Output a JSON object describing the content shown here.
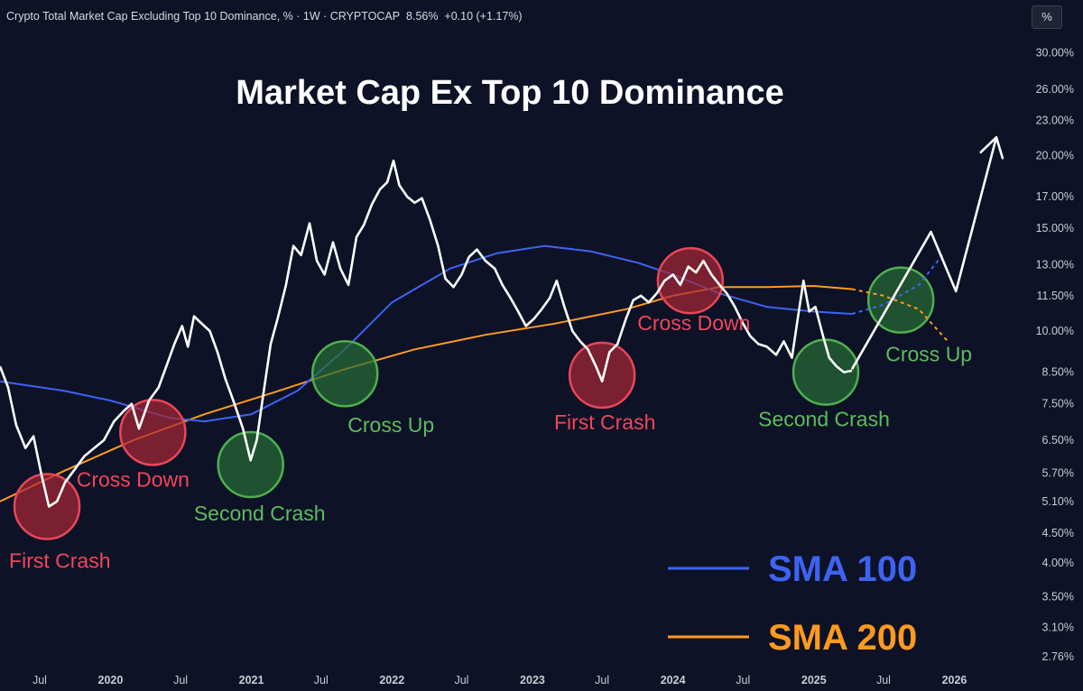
{
  "header": {
    "symbol_title": "Crypto Total Market Cap Excluding Top 10 Dominance, % · 1W · CRYPTOCAP",
    "last_value": "8.56%",
    "change": "+0.10 (+1.17%)",
    "unit_button": "%"
  },
  "chart_data": {
    "type": "line",
    "title": "Market Cap Ex Top 10 Dominance",
    "y_scale": "log",
    "ylim_percent": [
      2.6,
      31.5
    ],
    "xlim": [
      "2019-03-20",
      "2026-06-20"
    ],
    "y_tick_labels": [
      "30.00%",
      "26.00%",
      "23.00%",
      "20.00%",
      "17.00%",
      "15.00%",
      "13.00%",
      "11.50%",
      "10.00%",
      "8.50%",
      "7.50%",
      "6.50%",
      "5.70%",
      "5.10%",
      "4.50%",
      "4.00%",
      "3.50%",
      "3.10%",
      "2.76%"
    ],
    "y_ticks": [
      30.0,
      26.0,
      23.0,
      20.0,
      17.0,
      15.0,
      13.0,
      11.5,
      10.0,
      8.5,
      7.5,
      6.5,
      5.7,
      5.1,
      4.5,
      4.0,
      3.5,
      3.1,
      2.76
    ],
    "x_ticks": [
      {
        "label": "Jul",
        "date": "2019-07-01"
      },
      {
        "label": "2020",
        "date": "2020-01-01"
      },
      {
        "label": "Jul",
        "date": "2020-07-01"
      },
      {
        "label": "2021",
        "date": "2021-01-01"
      },
      {
        "label": "Jul",
        "date": "2021-07-01"
      },
      {
        "label": "2022",
        "date": "2022-01-01"
      },
      {
        "label": "Jul",
        "date": "2022-07-01"
      },
      {
        "label": "2023",
        "date": "2023-01-01"
      },
      {
        "label": "Jul",
        "date": "2023-07-01"
      },
      {
        "label": "2024",
        "date": "2024-01-01"
      },
      {
        "label": "Jul",
        "date": "2024-07-01"
      },
      {
        "label": "2025",
        "date": "2025-01-01"
      },
      {
        "label": "Jul",
        "date": "2025-07-01"
      },
      {
        "label": "2026",
        "date": "2026-01-01"
      }
    ],
    "series": [
      {
        "key": "price",
        "color": "#ffffff",
        "points": [
          [
            "2019-03-20",
            8.7
          ],
          [
            "2019-04-10",
            8.0
          ],
          [
            "2019-05-01",
            6.9
          ],
          [
            "2019-05-25",
            6.3
          ],
          [
            "2019-06-15",
            6.6
          ],
          [
            "2019-07-05",
            5.7
          ],
          [
            "2019-07-25",
            5.0
          ],
          [
            "2019-08-15",
            5.1
          ],
          [
            "2019-09-05",
            5.5
          ],
          [
            "2019-10-01",
            5.8
          ],
          [
            "2019-10-25",
            6.1
          ],
          [
            "2019-11-20",
            6.3
          ],
          [
            "2019-12-15",
            6.5
          ],
          [
            "2020-01-10",
            7.0
          ],
          [
            "2020-02-05",
            7.3
          ],
          [
            "2020-02-25",
            7.5
          ],
          [
            "2020-03-15",
            6.8
          ],
          [
            "2020-04-10",
            7.6
          ],
          [
            "2020-05-05",
            8.0
          ],
          [
            "2020-05-25",
            8.7
          ],
          [
            "2020-06-15",
            9.5
          ],
          [
            "2020-07-05",
            10.2
          ],
          [
            "2020-07-20",
            9.4
          ],
          [
            "2020-08-05",
            10.6
          ],
          [
            "2020-08-25",
            10.3
          ],
          [
            "2020-09-15",
            10.0
          ],
          [
            "2020-10-05",
            9.2
          ],
          [
            "2020-10-25",
            8.3
          ],
          [
            "2020-11-15",
            7.6
          ],
          [
            "2020-12-10",
            6.8
          ],
          [
            "2020-12-30",
            6.0
          ],
          [
            "2021-01-15",
            6.5
          ],
          [
            "2021-02-01",
            7.8
          ],
          [
            "2021-02-20",
            9.5
          ],
          [
            "2021-03-10",
            10.5
          ],
          [
            "2021-04-01",
            12.0
          ],
          [
            "2021-04-20",
            14.0
          ],
          [
            "2021-05-10",
            13.5
          ],
          [
            "2021-06-01",
            15.3
          ],
          [
            "2021-06-20",
            13.2
          ],
          [
            "2021-07-10",
            12.5
          ],
          [
            "2021-08-01",
            14.2
          ],
          [
            "2021-08-20",
            12.8
          ],
          [
            "2021-09-10",
            12.0
          ],
          [
            "2021-10-01",
            14.5
          ],
          [
            "2021-10-20",
            15.2
          ],
          [
            "2021-11-10",
            16.5
          ],
          [
            "2021-12-01",
            17.5
          ],
          [
            "2021-12-20",
            18.0
          ],
          [
            "2022-01-05",
            19.6
          ],
          [
            "2022-01-20",
            17.8
          ],
          [
            "2022-02-10",
            17.0
          ],
          [
            "2022-03-01",
            16.6
          ],
          [
            "2022-03-20",
            16.9
          ],
          [
            "2022-04-10",
            15.5
          ],
          [
            "2022-05-01",
            14.0
          ],
          [
            "2022-05-20",
            12.3
          ],
          [
            "2022-06-10",
            11.9
          ],
          [
            "2022-07-01",
            12.5
          ],
          [
            "2022-07-20",
            13.4
          ],
          [
            "2022-08-10",
            13.8
          ],
          [
            "2022-09-01",
            13.2
          ],
          [
            "2022-09-25",
            12.8
          ],
          [
            "2022-10-15",
            12.0
          ],
          [
            "2022-11-05",
            11.4
          ],
          [
            "2022-11-25",
            10.8
          ],
          [
            "2022-12-15",
            10.2
          ],
          [
            "2023-01-05",
            10.5
          ],
          [
            "2023-01-25",
            10.9
          ],
          [
            "2023-02-15",
            11.4
          ],
          [
            "2023-03-05",
            12.2
          ],
          [
            "2023-03-25",
            11.0
          ],
          [
            "2023-04-15",
            10.0
          ],
          [
            "2023-05-05",
            9.6
          ],
          [
            "2023-05-25",
            9.3
          ],
          [
            "2023-06-15",
            8.7
          ],
          [
            "2023-07-01",
            8.2
          ],
          [
            "2023-07-20",
            9.2
          ],
          [
            "2023-08-10",
            9.5
          ],
          [
            "2023-09-01",
            10.5
          ],
          [
            "2023-09-20",
            11.3
          ],
          [
            "2023-10-10",
            11.5
          ],
          [
            "2023-10-30",
            11.2
          ],
          [
            "2023-11-20",
            11.6
          ],
          [
            "2023-12-10",
            12.2
          ],
          [
            "2024-01-01",
            12.5
          ],
          [
            "2024-01-20",
            12.0
          ],
          [
            "2024-02-10",
            12.9
          ],
          [
            "2024-03-01",
            12.6
          ],
          [
            "2024-03-20",
            13.2
          ],
          [
            "2024-04-10",
            12.5
          ],
          [
            "2024-05-01",
            12.0
          ],
          [
            "2024-05-20",
            11.6
          ],
          [
            "2024-06-10",
            11.0
          ],
          [
            "2024-07-01",
            10.3
          ],
          [
            "2024-07-20",
            9.8
          ],
          [
            "2024-08-10",
            9.5
          ],
          [
            "2024-09-01",
            9.4
          ],
          [
            "2024-09-25",
            9.1
          ],
          [
            "2024-10-15",
            9.6
          ],
          [
            "2024-11-05",
            9.0
          ],
          [
            "2024-11-20",
            10.5
          ],
          [
            "2024-12-05",
            12.2
          ],
          [
            "2024-12-20",
            10.8
          ],
          [
            "2025-01-05",
            11.0
          ],
          [
            "2025-01-25",
            9.8
          ],
          [
            "2025-02-10",
            9.0
          ],
          [
            "2025-03-01",
            8.7
          ],
          [
            "2025-03-20",
            8.5
          ],
          [
            "2025-04-10",
            8.55
          ]
        ]
      },
      {
        "key": "sma100",
        "name": "SMA 100",
        "color": "#3d63f2",
        "points": [
          [
            "2019-03-20",
            8.2
          ],
          [
            "2019-09-01",
            7.9
          ],
          [
            "2020-01-01",
            7.6
          ],
          [
            "2020-06-01",
            7.1
          ],
          [
            "2020-09-01",
            7.0
          ],
          [
            "2021-01-01",
            7.2
          ],
          [
            "2021-05-01",
            7.9
          ],
          [
            "2021-09-01",
            9.3
          ],
          [
            "2022-01-01",
            11.2
          ],
          [
            "2022-06-01",
            12.8
          ],
          [
            "2022-10-01",
            13.6
          ],
          [
            "2023-02-01",
            14.0
          ],
          [
            "2023-06-01",
            13.7
          ],
          [
            "2023-10-01",
            13.1
          ],
          [
            "2024-01-01",
            12.5
          ],
          [
            "2024-05-01",
            11.6
          ],
          [
            "2024-09-01",
            11.0
          ],
          [
            "2025-01-01",
            10.8
          ],
          [
            "2025-04-10",
            10.7
          ]
        ]
      },
      {
        "key": "sma200",
        "name": "SMA 200",
        "color": "#ff9a1f",
        "points": [
          [
            "2019-03-20",
            5.1
          ],
          [
            "2019-09-01",
            5.75
          ],
          [
            "2020-03-01",
            6.5
          ],
          [
            "2020-09-01",
            7.2
          ],
          [
            "2021-03-01",
            7.85
          ],
          [
            "2021-09-01",
            8.6
          ],
          [
            "2022-03-01",
            9.3
          ],
          [
            "2022-09-01",
            9.85
          ],
          [
            "2023-03-01",
            10.3
          ],
          [
            "2023-09-01",
            10.9
          ],
          [
            "2024-01-01",
            11.5
          ],
          [
            "2024-05-01",
            11.9
          ],
          [
            "2024-09-01",
            11.9
          ],
          [
            "2025-01-01",
            11.95
          ],
          [
            "2025-04-10",
            11.8
          ]
        ]
      }
    ],
    "projections": [
      {
        "key": "sma100_proj",
        "color": "#3d63f2",
        "dashed": true,
        "points": [
          [
            "2025-04-10",
            10.7
          ],
          [
            "2025-07-01",
            11.1
          ],
          [
            "2025-10-01",
            12.0
          ],
          [
            "2025-12-01",
            13.5
          ]
        ]
      },
      {
        "key": "sma200_proj",
        "color": "#ff9a1f",
        "dashed": true,
        "points": [
          [
            "2025-04-10",
            11.8
          ],
          [
            "2025-07-01",
            11.5
          ],
          [
            "2025-10-01",
            10.9
          ],
          [
            "2025-12-15",
            9.6
          ]
        ]
      },
      {
        "key": "price_proj",
        "color": "#ffffff",
        "dashed": false,
        "arrow": true,
        "points": [
          [
            "2025-04-10",
            8.6
          ],
          [
            "2025-11-01",
            14.8
          ],
          [
            "2026-01-05",
            11.7
          ],
          [
            "2026-04-20",
            21.5
          ]
        ]
      }
    ],
    "annotations": [
      {
        "label": "First Crash",
        "color": "red",
        "date": "2019-07-20",
        "value": 5.0,
        "text_anchor": "start",
        "text_dx": -42,
        "text_dy": 68
      },
      {
        "label": "Cross Down",
        "color": "red",
        "date": "2020-04-20",
        "value": 6.7,
        "text_anchor": "middle",
        "text_dx": -22,
        "text_dy": 60
      },
      {
        "label": "Second Crash",
        "color": "green",
        "date": "2020-12-30",
        "value": 5.9,
        "text_anchor": "middle",
        "text_dx": 10,
        "text_dy": 62
      },
      {
        "label": "Cross Up",
        "color": "green",
        "date": "2021-09-01",
        "value": 8.45,
        "text_anchor": "middle",
        "text_dx": 51,
        "text_dy": 65
      },
      {
        "label": "First Crash",
        "color": "red",
        "date": "2023-07-01",
        "value": 8.4,
        "text_anchor": "middle",
        "text_dx": 3,
        "text_dy": 60
      },
      {
        "label": "Cross Down",
        "color": "red",
        "date": "2024-02-15",
        "value": 12.2,
        "text_anchor": "middle",
        "text_dx": 4,
        "text_dy": 55
      },
      {
        "label": "Second Crash",
        "color": "green",
        "date": "2025-02-01",
        "value": 8.5,
        "text_anchor": "middle",
        "text_dx": -2,
        "text_dy": 60
      },
      {
        "label": "Cross Up",
        "color": "green",
        "date": "2025-08-15",
        "value": 11.3,
        "text_anchor": "middle",
        "text_dx": 31,
        "text_dy": 68
      }
    ],
    "legend": {
      "position": "bottom-right",
      "entries": [
        {
          "label": "SMA 100",
          "color": "#3d63f2"
        },
        {
          "label": "SMA 200",
          "color": "#ff9a1f"
        }
      ]
    },
    "grid": false
  }
}
